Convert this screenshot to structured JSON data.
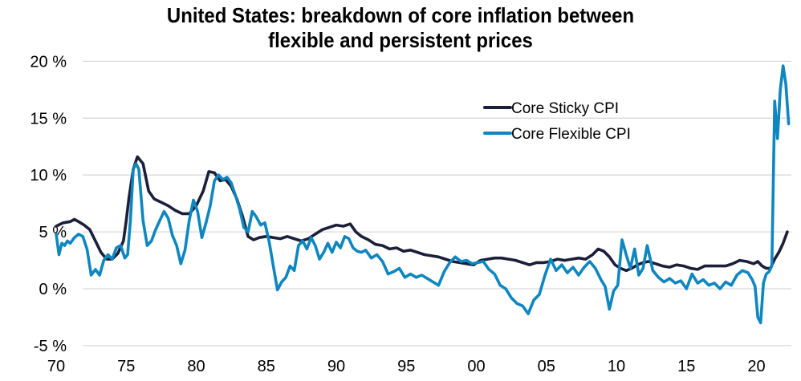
{
  "chart_data": {
    "type": "line",
    "title": "United States: breakdown of core inflation between flexible and persistent prices",
    "title_lines": [
      "United States: breakdown of core inflation between",
      "flexible and persistent prices"
    ],
    "xlabel": "",
    "ylabel": "",
    "xlim": [
      1970,
      2022.5
    ],
    "ylim": [
      -5,
      20
    ],
    "x_ticks": [
      1970,
      1975,
      1980,
      1985,
      1990,
      1995,
      2000,
      2005,
      2010,
      2015,
      2020
    ],
    "x_tick_labels": [
      "70",
      "75",
      "80",
      "85",
      "90",
      "95",
      "00",
      "05",
      "10",
      "15",
      "20"
    ],
    "y_ticks": [
      -5,
      0,
      5,
      10,
      15,
      20
    ],
    "y_tick_labels": [
      "-5 %",
      "0 %",
      "5 %",
      "10 %",
      "15 %",
      "20 %"
    ],
    "grid": "horizontal",
    "legend_position": "upper-right-center",
    "series": [
      {
        "name": "Core Sticky CPI",
        "color": "#1c1f3a",
        "x": [
          1970.0,
          1970.5,
          1971.0,
          1971.3,
          1971.6,
          1972.0,
          1972.4,
          1972.8,
          1973.2,
          1973.6,
          1974.0,
          1974.4,
          1974.8,
          1975.0,
          1975.2,
          1975.5,
          1975.8,
          1976.2,
          1976.6,
          1977.0,
          1977.5,
          1978.0,
          1978.5,
          1979.0,
          1979.5,
          1980.0,
          1980.5,
          1980.9,
          1981.3,
          1981.7,
          1982.1,
          1982.5,
          1982.9,
          1983.3,
          1983.7,
          1984.1,
          1984.5,
          1985.0,
          1985.5,
          1986.0,
          1986.5,
          1987.0,
          1987.5,
          1988.0,
          1988.5,
          1989.0,
          1989.5,
          1990.0,
          1990.5,
          1991.0,
          1991.4,
          1991.8,
          1992.3,
          1992.8,
          1993.3,
          1993.8,
          1994.3,
          1994.8,
          1995.3,
          1995.8,
          1996.3,
          1996.8,
          1997.3,
          1997.8,
          1998.3,
          1998.8,
          1999.3,
          1999.8,
          2000.3,
          2000.8,
          2001.3,
          2001.8,
          2002.3,
          2002.8,
          2003.3,
          2003.8,
          2004.3,
          2004.8,
          2005.3,
          2005.8,
          2006.3,
          2006.8,
          2007.3,
          2007.8,
          2008.3,
          2008.7,
          2009.1,
          2009.5,
          2009.9,
          2010.3,
          2010.7,
          2011.1,
          2011.5,
          2011.9,
          2012.3,
          2012.8,
          2013.3,
          2013.8,
          2014.3,
          2014.8,
          2015.3,
          2015.8,
          2016.3,
          2016.8,
          2017.3,
          2017.8,
          2018.3,
          2018.8,
          2019.3,
          2019.8,
          2020.1,
          2020.4,
          2020.7,
          2021.0,
          2021.3,
          2021.6,
          2021.9,
          2022.2
        ],
        "values": [
          5.5,
          5.8,
          5.9,
          6.1,
          5.9,
          5.6,
          5.2,
          4.2,
          3.2,
          2.6,
          2.6,
          3.1,
          4.2,
          6.0,
          8.0,
          10.5,
          11.6,
          11.0,
          8.6,
          7.9,
          7.6,
          7.3,
          6.9,
          6.6,
          6.6,
          7.3,
          8.6,
          10.3,
          10.2,
          9.5,
          9.6,
          9.0,
          7.9,
          6.4,
          4.6,
          4.3,
          4.5,
          4.6,
          4.5,
          4.4,
          4.6,
          4.4,
          4.2,
          4.4,
          4.8,
          5.2,
          5.4,
          5.6,
          5.5,
          5.7,
          5.0,
          4.6,
          4.3,
          3.9,
          3.8,
          3.5,
          3.6,
          3.3,
          3.4,
          3.2,
          3.0,
          2.9,
          2.8,
          2.6,
          2.4,
          2.3,
          2.2,
          2.1,
          2.5,
          2.6,
          2.7,
          2.7,
          2.6,
          2.5,
          2.3,
          2.1,
          2.3,
          2.3,
          2.4,
          2.6,
          2.5,
          2.6,
          2.7,
          2.6,
          3.0,
          3.5,
          3.3,
          2.8,
          2.1,
          1.8,
          1.6,
          1.8,
          2.1,
          2.3,
          2.4,
          2.2,
          2.0,
          1.9,
          2.1,
          2.0,
          1.8,
          1.7,
          2.0,
          2.0,
          2.0,
          2.0,
          2.2,
          2.5,
          2.4,
          2.2,
          2.4,
          2.0,
          1.8,
          1.8,
          2.6,
          3.2,
          4.0,
          5.0
        ]
      },
      {
        "name": "Core Flexible CPI",
        "color": "#0e86c0",
        "x": [
          1970.0,
          1970.2,
          1970.4,
          1970.6,
          1970.8,
          1971.0,
          1971.3,
          1971.6,
          1971.9,
          1972.2,
          1972.5,
          1972.8,
          1973.1,
          1973.4,
          1973.7,
          1974.0,
          1974.3,
          1974.6,
          1974.9,
          1975.1,
          1975.3,
          1975.5,
          1975.7,
          1975.9,
          1976.2,
          1976.5,
          1976.8,
          1977.1,
          1977.4,
          1977.7,
          1978.0,
          1978.3,
          1978.6,
          1978.9,
          1979.2,
          1979.5,
          1979.8,
          1980.1,
          1980.4,
          1980.7,
          1981.0,
          1981.3,
          1981.6,
          1981.9,
          1982.2,
          1982.5,
          1982.8,
          1983.1,
          1983.4,
          1983.7,
          1984.0,
          1984.3,
          1984.6,
          1984.9,
          1985.2,
          1985.5,
          1985.8,
          1986.1,
          1986.4,
          1986.7,
          1987.0,
          1987.3,
          1987.6,
          1987.9,
          1988.2,
          1988.5,
          1988.8,
          1989.1,
          1989.4,
          1989.7,
          1990.0,
          1990.3,
          1990.6,
          1990.9,
          1991.2,
          1991.5,
          1991.8,
          1992.1,
          1992.5,
          1992.9,
          1993.3,
          1993.7,
          1994.1,
          1994.5,
          1994.9,
          1995.3,
          1995.7,
          1996.1,
          1996.5,
          1996.9,
          1997.3,
          1997.7,
          1998.1,
          1998.5,
          1998.9,
          1999.3,
          1999.7,
          2000.1,
          2000.5,
          2000.9,
          2001.3,
          2001.7,
          2002.1,
          2002.5,
          2002.9,
          2003.3,
          2003.7,
          2004.1,
          2004.5,
          2004.9,
          2005.3,
          2005.7,
          2006.1,
          2006.5,
          2006.9,
          2007.3,
          2007.7,
          2008.1,
          2008.5,
          2008.9,
          2009.2,
          2009.5,
          2009.8,
          2010.1,
          2010.4,
          2010.7,
          2011.0,
          2011.3,
          2011.6,
          2011.9,
          2012.2,
          2012.6,
          2013.0,
          2013.4,
          2013.8,
          2014.2,
          2014.6,
          2015.0,
          2015.4,
          2015.8,
          2016.2,
          2016.6,
          2017.0,
          2017.4,
          2017.8,
          2018.2,
          2018.6,
          2019.0,
          2019.4,
          2019.7,
          2019.9,
          2020.1,
          2020.3,
          2020.5,
          2020.7,
          2020.9,
          2021.1,
          2021.3,
          2021.5,
          2021.7,
          2021.9,
          2022.1,
          2022.3
        ],
        "values": [
          4.8,
          3.0,
          4.0,
          3.8,
          4.2,
          4.0,
          4.5,
          4.8,
          4.6,
          3.5,
          1.2,
          1.7,
          1.2,
          2.5,
          3.0,
          2.6,
          3.6,
          3.8,
          2.7,
          3.0,
          6.0,
          10.5,
          11.0,
          10.5,
          6.0,
          3.8,
          4.2,
          5.2,
          6.0,
          6.8,
          6.2,
          4.7,
          3.8,
          2.2,
          3.4,
          6.0,
          7.8,
          6.8,
          4.5,
          5.8,
          7.3,
          9.5,
          10.0,
          9.6,
          9.8,
          9.3,
          8.2,
          7.0,
          5.4,
          5.0,
          6.8,
          6.3,
          5.6,
          5.8,
          4.2,
          2.0,
          -0.1,
          0.6,
          1.0,
          2.0,
          1.6,
          3.8,
          4.2,
          3.5,
          4.5,
          3.8,
          2.6,
          3.2,
          4.0,
          3.2,
          4.1,
          3.6,
          4.6,
          4.4,
          3.6,
          3.3,
          3.2,
          3.4,
          2.7,
          3.0,
          2.4,
          1.3,
          1.5,
          1.8,
          1.0,
          1.3,
          1.0,
          1.2,
          0.9,
          0.6,
          0.3,
          1.5,
          2.3,
          2.8,
          2.4,
          2.5,
          2.2,
          2.3,
          2.4,
          1.7,
          1.3,
          0.3,
          0.0,
          -0.8,
          -1.3,
          -1.5,
          -2.2,
          -1.0,
          -0.5,
          1.2,
          2.6,
          1.6,
          2.1,
          1.4,
          1.9,
          1.2,
          1.9,
          2.4,
          1.8,
          0.8,
          0.2,
          -1.8,
          -0.2,
          0.3,
          4.3,
          3.0,
          1.8,
          3.5,
          1.2,
          1.8,
          3.8,
          1.6,
          1.0,
          0.6,
          0.9,
          0.5,
          0.7,
          0.0,
          1.3,
          0.5,
          0.8,
          0.3,
          0.5,
          0.0,
          0.6,
          0.3,
          1.2,
          1.6,
          1.4,
          0.8,
          0.2,
          -2.5,
          -3.0,
          0.5,
          1.3,
          1.5,
          2.0,
          16.5,
          13.2,
          17.5,
          19.6,
          18.0,
          14.5
        ]
      }
    ]
  },
  "legend": {
    "items": [
      {
        "label": "Core Sticky CPI",
        "color": "#1c1f3a"
      },
      {
        "label": "Core Flexible CPI",
        "color": "#0e86c0"
      }
    ]
  }
}
